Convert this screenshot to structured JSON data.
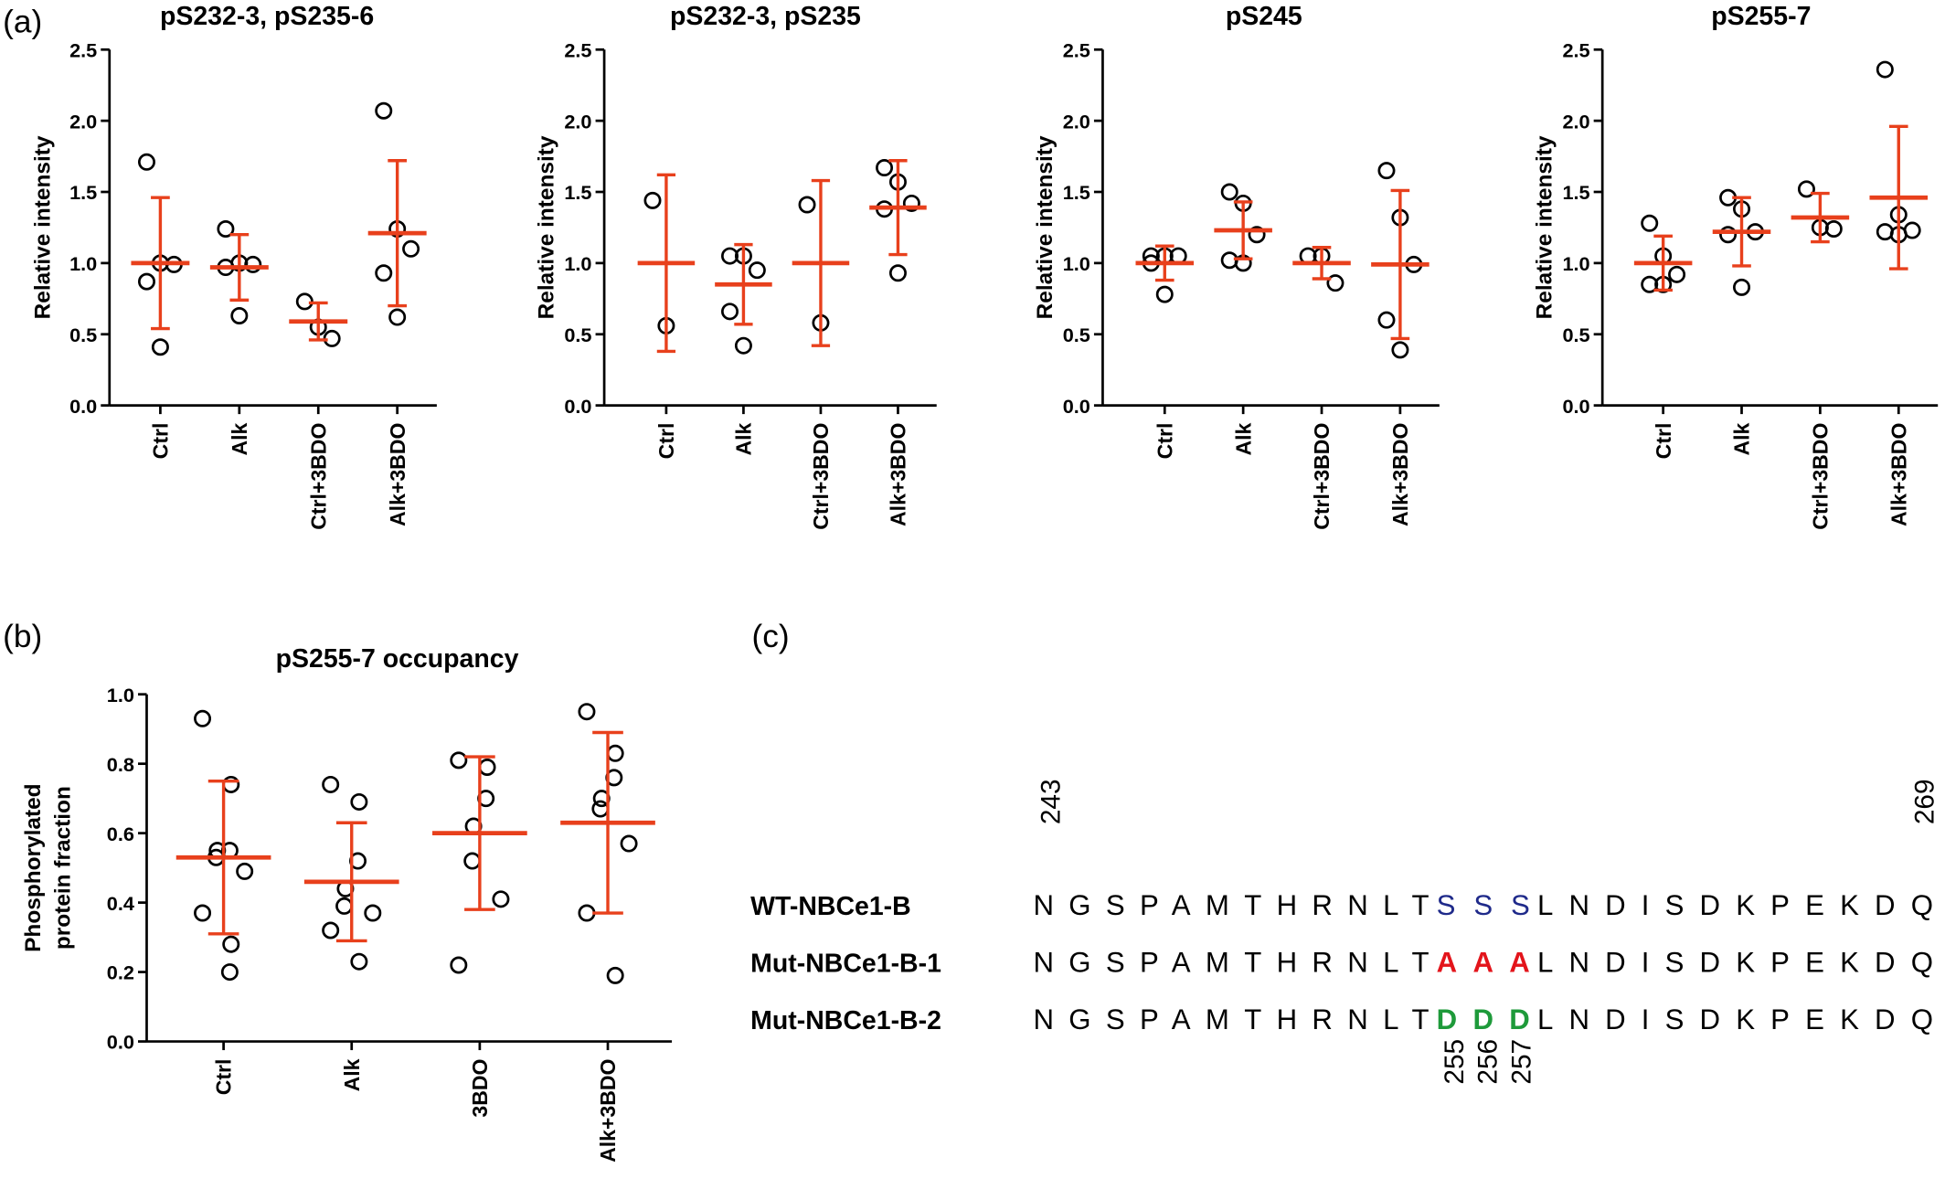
{
  "panel_labels": [
    "(a)",
    "(b)",
    "(c)"
  ],
  "chart_data": [
    {
      "type": "dot",
      "title": "pS232-3, pS235-6",
      "ylabel": [
        "Relative intensity"
      ],
      "categories": [
        "Ctrl",
        "Alk",
        "Ctrl+3BDO",
        "Alk+3BDO"
      ],
      "points": [
        [
          1.71,
          1.0,
          0.99,
          0.87,
          0.41
        ],
        [
          1.24,
          1.0,
          0.99,
          0.97,
          0.63
        ],
        [
          0.73,
          0.55,
          0.47
        ],
        [
          2.07,
          1.24,
          1.1,
          0.93,
          0.62
        ]
      ],
      "means": [
        1.0,
        0.97,
        0.59,
        1.21
      ],
      "errors": [
        0.46,
        0.23,
        0.13,
        0.51
      ],
      "mean_color": "#e8401c",
      "point_color": "#000000",
      "ylim": [
        0,
        2.5
      ],
      "yticks": [
        {
          "value": 0,
          "label": "0.0"
        },
        0.5,
        {
          "value": 1,
          "label": "1.0"
        },
        1.5,
        {
          "value": 2,
          "label": "2.0"
        },
        2.5
      ]
    },
    {
      "type": "dot",
      "title": "pS232-3, pS235",
      "ylabel": [
        "Relative intensity"
      ],
      "categories": [
        "Ctrl",
        "Alk",
        "Ctrl+3BDO",
        "Alk+3BDO"
      ],
      "points": [
        [
          1.44,
          0.56
        ],
        [
          1.05,
          1.05,
          0.95,
          0.66,
          0.42
        ],
        [
          1.41,
          0.58
        ],
        [
          1.67,
          1.57,
          1.42,
          1.38,
          0.93
        ]
      ],
      "means": [
        1.0,
        0.85,
        1.0,
        1.39
      ],
      "errors": [
        0.62,
        0.28,
        0.58,
        0.33
      ],
      "mean_color": "#e8401c",
      "point_color": "#000000",
      "ylim": [
        0,
        2.5
      ],
      "yticks": [
        {
          "value": 0,
          "label": "0.0"
        },
        0.5,
        {
          "value": 1,
          "label": "1.0"
        },
        1.5,
        {
          "value": 2,
          "label": "2.0"
        },
        2.5
      ]
    },
    {
      "type": "dot",
      "title": "pS245",
      "ylabel": [
        "Relative intensity"
      ],
      "categories": [
        "Ctrl",
        "Alk",
        "Ctrl+3BDO",
        "Alk+3BDO"
      ],
      "points": [
        [
          1.05,
          1.05,
          1.05,
          1.0,
          0.78
        ],
        [
          1.5,
          1.42,
          1.2,
          1.02,
          1.0
        ],
        [
          1.05,
          1.05,
          0.86
        ],
        [
          1.65,
          1.32,
          0.99,
          0.6,
          0.39
        ]
      ],
      "means": [
        1.0,
        1.23,
        1.0,
        0.99
      ],
      "errors": [
        0.12,
        0.2,
        0.11,
        0.52
      ],
      "mean_color": "#e8401c",
      "point_color": "#000000",
      "ylim": [
        0,
        2.5
      ],
      "yticks": [
        {
          "value": 0,
          "label": "0.0"
        },
        0.5,
        {
          "value": 1,
          "label": "1.0"
        },
        1.5,
        {
          "value": 2,
          "label": "2.0"
        },
        2.5
      ]
    },
    {
      "type": "dot",
      "title": "pS255-7",
      "ylabel": [
        "Relative intensity"
      ],
      "categories": [
        "Ctrl",
        "Alk",
        "Ctrl+3BDO",
        "Alk+3BDO"
      ],
      "points": [
        [
          1.28,
          1.05,
          0.92,
          0.85,
          0.85
        ],
        [
          1.46,
          1.38,
          1.22,
          1.2,
          0.83
        ],
        [
          1.52,
          1.25,
          1.24
        ],
        [
          2.36,
          1.34,
          1.23,
          1.22,
          1.2
        ]
      ],
      "means": [
        1.0,
        1.22,
        1.32,
        1.46
      ],
      "errors": [
        0.19,
        0.24,
        0.17,
        0.5
      ],
      "mean_color": "#e8401c",
      "point_color": "#000000",
      "ylim": [
        0,
        2.5
      ],
      "yticks": [
        {
          "value": 0,
          "label": "0.0"
        },
        0.5,
        {
          "value": 1,
          "label": "1.0"
        },
        1.5,
        {
          "value": 2,
          "label": "2.0"
        },
        2.5
      ]
    },
    {
      "type": "dot",
      "title": "pS255-7 occupancy",
      "ylabel": [
        "Phosphorylated",
        "protein fraction"
      ],
      "categories": [
        "Ctrl",
        "Alk",
        "3BDO",
        "Alk+3BDO"
      ],
      "points": [
        [
          0.93,
          0.74,
          0.55,
          0.55,
          0.53,
          0.49,
          0.37,
          0.28,
          0.2
        ],
        [
          0.74,
          0.69,
          0.52,
          0.44,
          0.39,
          0.37,
          0.32,
          0.23
        ],
        [
          0.81,
          0.79,
          0.7,
          0.62,
          0.52,
          0.41,
          0.22
        ],
        [
          0.95,
          0.83,
          0.76,
          0.7,
          0.67,
          0.57,
          0.37,
          0.19
        ]
      ],
      "means": [
        0.53,
        0.46,
        0.6,
        0.63
      ],
      "errors": [
        0.22,
        0.17,
        0.22,
        0.26
      ],
      "mean_color": "#e8401c",
      "point_color": "#000000",
      "ylim": [
        0,
        1
      ],
      "yticks": [
        {
          "value": 0,
          "label": "0.0"
        },
        0.2,
        0.4,
        0.6,
        0.8,
        {
          "value": 1,
          "label": "1.0"
        }
      ]
    }
  ],
  "alignment": {
    "rows": [
      {
        "name": "WT-NBCe1-B",
        "before": "NGSPAMTHRNLT",
        "site": "SSS",
        "after": "LNDISDKPEKDQ",
        "site_color": "#1f2a8a"
      },
      {
        "name": "Mut-NBCe1-B-1",
        "before": "NGSPAMTHRNLT",
        "site": "AAA",
        "after": "LNDISDKPEKDQ",
        "site_color": "#e3141b"
      },
      {
        "name": "Mut-NBCe1-B-2",
        "before": "NGSPAMTHRNLT",
        "site": "DDD",
        "after": "LNDISDKPEKDQ",
        "site_color": "#1e9a3a"
      }
    ],
    "start": "243",
    "end": "269",
    "sites": [
      "255",
      "256",
      "257"
    ]
  }
}
